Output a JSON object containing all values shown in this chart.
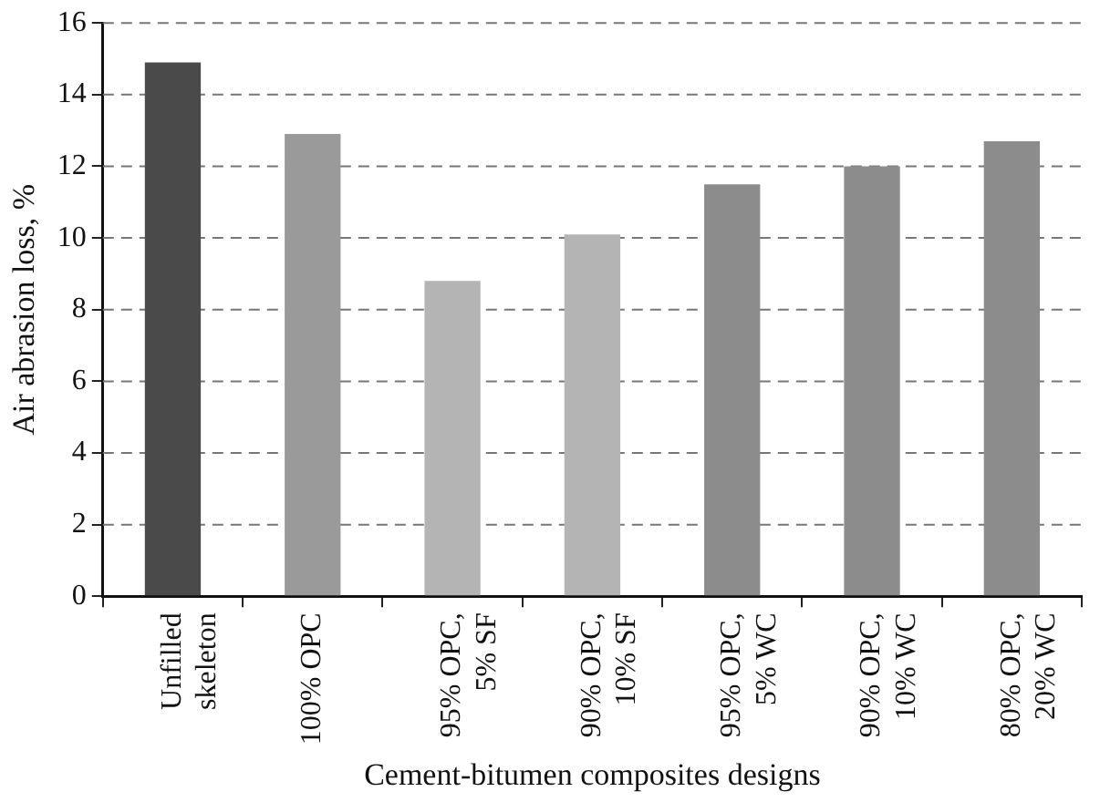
{
  "chart_data": {
    "type": "bar",
    "xlabel": "Cement-bitumen composites designs",
    "ylabel": "Air abrasion loss, %",
    "categories": [
      "Unfilled\nskeleton",
      "100% OPC",
      "95% OPC,\n5% SF",
      "90% OPC,\n10% SF",
      "95% OPC,\n5% WC",
      "90% OPC,\n10% WC",
      "80% OPC,\n20% WC"
    ],
    "values": [
      14.9,
      12.9,
      8.8,
      10.1,
      11.5,
      12.0,
      12.7
    ],
    "colors": [
      "#4a4a4a",
      "#9a9a9a",
      "#b4b4b4",
      "#b4b4b4",
      "#8c8c8c",
      "#8c8c8c",
      "#8c8c8c"
    ],
    "ylim": [
      0,
      16
    ],
    "yticks": [
      0,
      2,
      4,
      6,
      8,
      10,
      12,
      14,
      16
    ],
    "grid": "y",
    "legend": false
  }
}
